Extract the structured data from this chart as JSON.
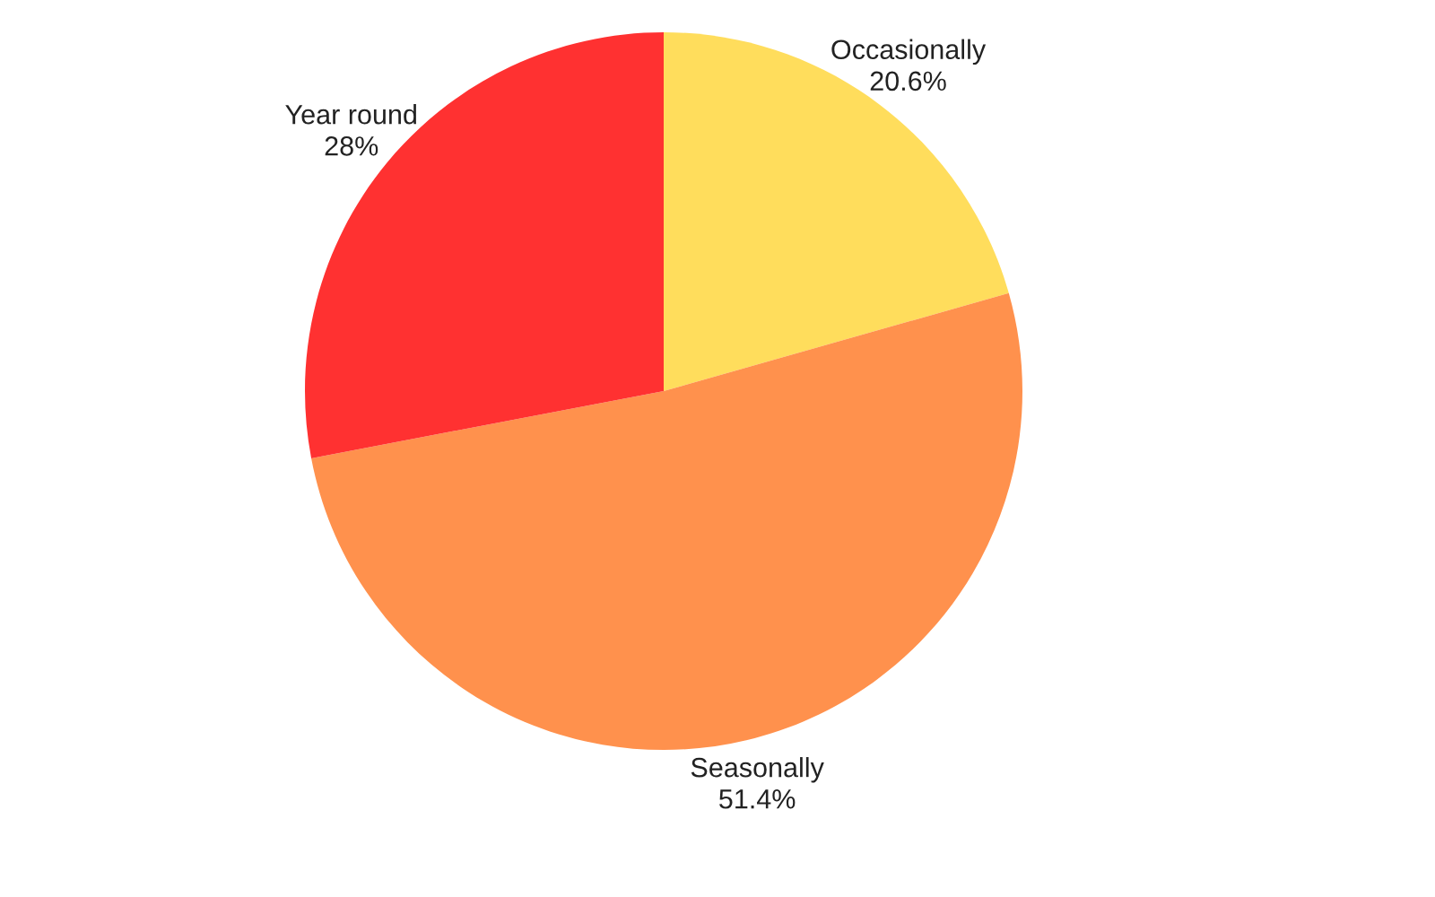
{
  "chart_data": {
    "type": "pie",
    "categories": [
      "Occasionally",
      "Seasonally",
      "Year round"
    ],
    "values": [
      20.6,
      51.4,
      28
    ],
    "value_labels": [
      "20.6%",
      "51.4%",
      "28%"
    ],
    "colors": [
      "#ffdd5c",
      "#ff914d",
      "#ff3131"
    ]
  }
}
